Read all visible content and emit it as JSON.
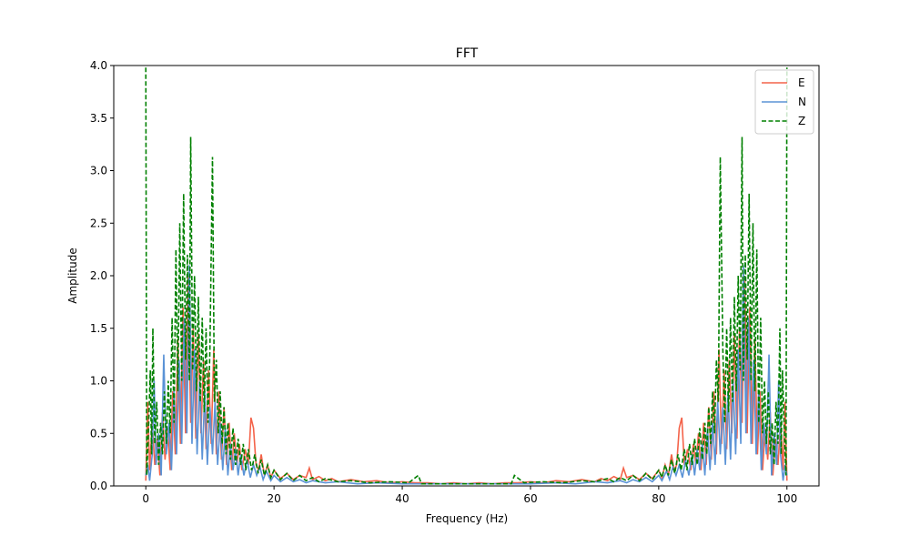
{
  "chart_data": {
    "type": "line",
    "title": "FFT",
    "xlabel": "Frequency (Hz)",
    "ylabel": "Amplitude",
    "xlim": [
      -5,
      105
    ],
    "ylim": [
      0,
      4.0
    ],
    "xticks": [
      0,
      20,
      40,
      60,
      80,
      100
    ],
    "yticks": [
      0.0,
      0.5,
      1.0,
      1.5,
      2.0,
      2.5,
      3.0,
      3.5,
      4.0
    ],
    "legend_position": "top-right",
    "spectrum_symmetric_about": 50,
    "series": [
      {
        "name": "E",
        "color": "#f4634a",
        "style": "solid",
        "points": [
          [
            0,
            0.05
          ],
          [
            0.3,
            0.8
          ],
          [
            0.6,
            0.15
          ],
          [
            1,
            0.6
          ],
          [
            1.4,
            0.2
          ],
          [
            1.8,
            0.45
          ],
          [
            2.2,
            0.1
          ],
          [
            2.6,
            0.7
          ],
          [
            3,
            0.25
          ],
          [
            3.4,
            0.55
          ],
          [
            3.8,
            0.15
          ],
          [
            4.2,
            0.9
          ],
          [
            4.6,
            0.3
          ],
          [
            5,
            1.4
          ],
          [
            5.4,
            0.4
          ],
          [
            5.8,
            1.7
          ],
          [
            6.2,
            0.5
          ],
          [
            6.6,
            2.0
          ],
          [
            7,
            0.6
          ],
          [
            7.4,
            1.5
          ],
          [
            7.8,
            0.45
          ],
          [
            8.2,
            1.45
          ],
          [
            8.6,
            0.5
          ],
          [
            9,
            1.2
          ],
          [
            9.4,
            0.35
          ],
          [
            9.8,
            1.1
          ],
          [
            10.2,
            0.4
          ],
          [
            10.6,
            1.3
          ],
          [
            11,
            0.3
          ],
          [
            11.4,
            0.9
          ],
          [
            11.8,
            0.25
          ],
          [
            12.2,
            0.75
          ],
          [
            12.6,
            0.2
          ],
          [
            13,
            0.6
          ],
          [
            13.4,
            0.15
          ],
          [
            13.8,
            0.5
          ],
          [
            14.2,
            0.2
          ],
          [
            14.6,
            0.4
          ],
          [
            15,
            0.15
          ],
          [
            15.5,
            0.35
          ],
          [
            16,
            0.2
          ],
          [
            16.4,
            0.65
          ],
          [
            16.8,
            0.55
          ],
          [
            17.2,
            0.2
          ],
          [
            17.6,
            0.15
          ],
          [
            18,
            0.3
          ],
          [
            18.5,
            0.1
          ],
          [
            19,
            0.2
          ],
          [
            19.5,
            0.08
          ],
          [
            20,
            0.15
          ],
          [
            21,
            0.07
          ],
          [
            22,
            0.12
          ],
          [
            23,
            0.06
          ],
          [
            24,
            0.1
          ],
          [
            25,
            0.08
          ],
          [
            25.5,
            0.17
          ],
          [
            26,
            0.06
          ],
          [
            27,
            0.09
          ],
          [
            28,
            0.05
          ],
          [
            29,
            0.07
          ],
          [
            30,
            0.04
          ],
          [
            32,
            0.06
          ],
          [
            34,
            0.04
          ],
          [
            36,
            0.05
          ],
          [
            38,
            0.03
          ],
          [
            40,
            0.04
          ],
          [
            42,
            0.03
          ],
          [
            44,
            0.03
          ],
          [
            46,
            0.02
          ],
          [
            48,
            0.03
          ],
          [
            50,
            0.02
          ]
        ]
      },
      {
        "name": "N",
        "color": "#5b93d6",
        "style": "solid",
        "points": [
          [
            0,
            0.1
          ],
          [
            0.3,
            0.2
          ],
          [
            0.6,
            0.05
          ],
          [
            1,
            0.3
          ],
          [
            1.3,
            1.0
          ],
          [
            1.6,
            0.2
          ],
          [
            2,
            0.5
          ],
          [
            2.4,
            0.1
          ],
          [
            2.8,
            1.25
          ],
          [
            3.2,
            0.3
          ],
          [
            3.6,
            0.6
          ],
          [
            4,
            0.15
          ],
          [
            4.4,
            0.9
          ],
          [
            4.8,
            0.3
          ],
          [
            5.2,
            1.2
          ],
          [
            5.6,
            0.4
          ],
          [
            6,
            1.6
          ],
          [
            6.4,
            0.5
          ],
          [
            6.8,
            2.1
          ],
          [
            7.2,
            0.4
          ],
          [
            7.6,
            1.3
          ],
          [
            8,
            0.3
          ],
          [
            8.4,
            1.0
          ],
          [
            8.8,
            0.25
          ],
          [
            9.2,
            0.9
          ],
          [
            9.6,
            0.2
          ],
          [
            10,
            0.75
          ],
          [
            10.4,
            0.3
          ],
          [
            10.8,
            0.8
          ],
          [
            11.2,
            0.2
          ],
          [
            11.6,
            0.6
          ],
          [
            12,
            0.15
          ],
          [
            12.4,
            0.55
          ],
          [
            12.8,
            0.1
          ],
          [
            13.2,
            0.4
          ],
          [
            13.6,
            0.15
          ],
          [
            14,
            0.35
          ],
          [
            14.4,
            0.1
          ],
          [
            14.8,
            0.3
          ],
          [
            15.3,
            0.1
          ],
          [
            15.8,
            0.25
          ],
          [
            16.3,
            0.08
          ],
          [
            16.8,
            0.2
          ],
          [
            17.3,
            0.1
          ],
          [
            17.8,
            0.18
          ],
          [
            18.3,
            0.06
          ],
          [
            18.8,
            0.14
          ],
          [
            19.5,
            0.05
          ],
          [
            20,
            0.1
          ],
          [
            21,
            0.04
          ],
          [
            22,
            0.08
          ],
          [
            23,
            0.04
          ],
          [
            24,
            0.06
          ],
          [
            25,
            0.03
          ],
          [
            26,
            0.05
          ],
          [
            28,
            0.03
          ],
          [
            30,
            0.04
          ],
          [
            33,
            0.02
          ],
          [
            36,
            0.03
          ],
          [
            40,
            0.02
          ],
          [
            44,
            0.02
          ],
          [
            48,
            0.02
          ],
          [
            50,
            0.02
          ]
        ]
      },
      {
        "name": "Z",
        "color": "#008000",
        "style": "dashed",
        "points": [
          [
            0,
            3.98
          ],
          [
            0.15,
            0.1
          ],
          [
            0.4,
            0.5
          ],
          [
            0.7,
            1.1
          ],
          [
            0.9,
            0.3
          ],
          [
            1.1,
            1.5
          ],
          [
            1.4,
            0.4
          ],
          [
            1.7,
            0.8
          ],
          [
            2,
            0.2
          ],
          [
            2.3,
            0.6
          ],
          [
            2.6,
            0.3
          ],
          [
            2.9,
            0.9
          ],
          [
            3.2,
            0.4
          ],
          [
            3.5,
            1.0
          ],
          [
            3.8,
            0.5
          ],
          [
            4.1,
            1.6
          ],
          [
            4.4,
            0.6
          ],
          [
            4.7,
            2.25
          ],
          [
            5,
            0.9
          ],
          [
            5.3,
            2.5
          ],
          [
            5.6,
            1.0
          ],
          [
            5.9,
            2.78
          ],
          [
            6.2,
            1.2
          ],
          [
            6.5,
            2.2
          ],
          [
            6.8,
            1.0
          ],
          [
            7,
            3.32
          ],
          [
            7.3,
            1.1
          ],
          [
            7.6,
            2.0
          ],
          [
            7.9,
            0.9
          ],
          [
            8.2,
            1.8
          ],
          [
            8.5,
            0.8
          ],
          [
            8.8,
            1.6
          ],
          [
            9.1,
            0.7
          ],
          [
            9.4,
            1.5
          ],
          [
            9.7,
            0.6
          ],
          [
            10,
            1.3
          ],
          [
            10.4,
            3.13
          ],
          [
            10.7,
            0.8
          ],
          [
            11,
            1.2
          ],
          [
            11.3,
            0.5
          ],
          [
            11.6,
            0.9
          ],
          [
            11.9,
            0.4
          ],
          [
            12.2,
            0.75
          ],
          [
            12.5,
            0.3
          ],
          [
            12.8,
            0.6
          ],
          [
            13.2,
            0.25
          ],
          [
            13.6,
            0.55
          ],
          [
            14,
            0.2
          ],
          [
            14.4,
            0.45
          ],
          [
            14.8,
            0.2
          ],
          [
            15.2,
            0.4
          ],
          [
            15.6,
            0.15
          ],
          [
            16,
            0.35
          ],
          [
            16.5,
            0.15
          ],
          [
            17,
            0.3
          ],
          [
            17.5,
            0.12
          ],
          [
            18,
            0.25
          ],
          [
            18.5,
            0.1
          ],
          [
            19,
            0.2
          ],
          [
            19.5,
            0.08
          ],
          [
            20,
            0.15
          ],
          [
            21,
            0.06
          ],
          [
            22,
            0.12
          ],
          [
            23,
            0.05
          ],
          [
            24,
            0.1
          ],
          [
            25,
            0.05
          ],
          [
            26,
            0.08
          ],
          [
            27,
            0.04
          ],
          [
            28,
            0.07
          ],
          [
            30,
            0.04
          ],
          [
            32,
            0.05
          ],
          [
            35,
            0.03
          ],
          [
            38,
            0.04
          ],
          [
            41,
            0.03
          ],
          [
            42.5,
            0.1
          ],
          [
            43,
            0.02
          ],
          [
            46,
            0.02
          ],
          [
            50,
            0.02
          ]
        ]
      }
    ]
  }
}
